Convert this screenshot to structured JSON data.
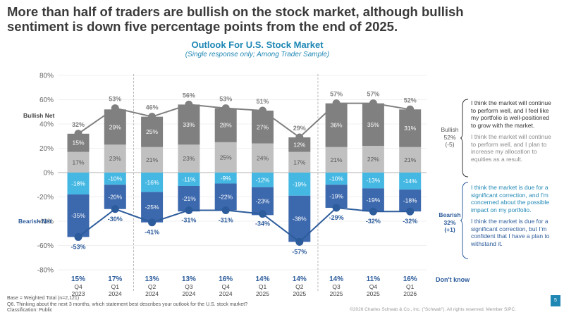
{
  "headline": "More than half of traders are bullish on the stock market, although bullish sentiment is down five percentage points from the end of 2025.",
  "chart_title": "Outlook For U.S. Stock Market",
  "chart_subtitle": "(Single response only; Among Trader Sample)",
  "chart_data": {
    "type": "bar",
    "stacked": "diverging",
    "quarters": [
      "Q4",
      "Q1",
      "Q2",
      "Q3",
      "Q4",
      "Q1",
      "Q2",
      "Q3",
      "Q4",
      "Q1"
    ],
    "years": [
      "2023",
      "2024",
      "2024",
      "2024",
      "2024",
      "2025",
      "2025",
      "2025",
      "2025",
      "2026"
    ],
    "ylim": [
      -80,
      80
    ],
    "y_ticks": [
      80,
      60,
      40,
      20,
      0,
      -20,
      -40,
      -60,
      -80
    ],
    "y_tick_labels": [
      "80%",
      "60%",
      "40%",
      "20%",
      "0%",
      "-20%",
      "-40%",
      "-60%",
      "-80%"
    ],
    "series": [
      {
        "name": "I think the market will continue to perform well, and I feel like my portfolio is well-positioned to grow with the market.",
        "color": "#808080",
        "values": [
          15,
          29,
          25,
          33,
          28,
          27,
          12,
          36,
          35,
          31
        ]
      },
      {
        "name": "I think the market will continue to perform well, and I plan to increase my allocation to equities as a result.",
        "color": "#c0c0c0",
        "values": [
          17,
          23,
          21,
          23,
          25,
          24,
          17,
          21,
          22,
          21
        ]
      },
      {
        "name": "I think the market is due for a significant correction, and I'm concerned about the possible impact on my portfolio.",
        "color": "#44b8e3",
        "values": [
          -18,
          -10,
          -16,
          -11,
          -9,
          -12,
          -19,
          -10,
          -13,
          -14
        ]
      },
      {
        "name": "I think the market is due for a significant correction, but I'm confident that I have a plan to withstand it.",
        "color": "#3c68ad",
        "values": [
          -35,
          -20,
          -25,
          -21,
          -22,
          -23,
          -38,
          -19,
          -19,
          -18
        ]
      }
    ],
    "bullish_net": [
      32,
      53,
      46,
      56,
      53,
      51,
      29,
      57,
      57,
      52
    ],
    "bearish_net": [
      -53,
      -30,
      -41,
      -31,
      -31,
      -34,
      -57,
      -29,
      -32,
      -32
    ],
    "dont_know": [
      "15%",
      "17%",
      "13%",
      "13%",
      "16%",
      "14%",
      "14%",
      "14%",
      "11%",
      "16%"
    ],
    "bullish_net_label": "Bullish Net",
    "bearish_net_label": "Bearish Net",
    "dividers_after_index": [
      1,
      6
    ],
    "colors": {
      "bull_line": "#808080",
      "bear_line": "#2d5c9c",
      "dark_grey": "#808080",
      "light_grey": "#c0c0c0",
      "light_blue": "#44b8e3",
      "dark_blue": "#3c68ad"
    }
  },
  "bullish_quotes": {
    "q1": "I think the market will continue to perform well, and I feel like my portfolio is well-positioned to grow with the market.",
    "q2": "I think the market will continue to perform well, and I plan to increase my allocation to equities as a result."
  },
  "bearish_quotes": {
    "q1": "I think the market is due for a significant correction, and I'm concerned about the possible impact on my portfolio.",
    "q2": "I think the market is due for a significant correction, but I'm confident that I have a plan to withstand it."
  },
  "bullish_summary": {
    "label": "Bullish",
    "pct": "52%",
    "change": "(-5)"
  },
  "bearish_summary": {
    "label": "Bearish",
    "pct": "32%",
    "change": "(+1)"
  },
  "dont_know_label": "Don't know",
  "footer": {
    "base": "Base = Weighted Total (n=2,121)",
    "question": "Q6. Thinking about the next 3 months, which statement best describes your outlook for the U.S. stock market?",
    "classification": "Classification: Public"
  },
  "copyright": "©2026 Charles Schwab & Co., Inc. (\"Schwab\"). All rights reserved. Member SIPC.",
  "page_number": "5"
}
